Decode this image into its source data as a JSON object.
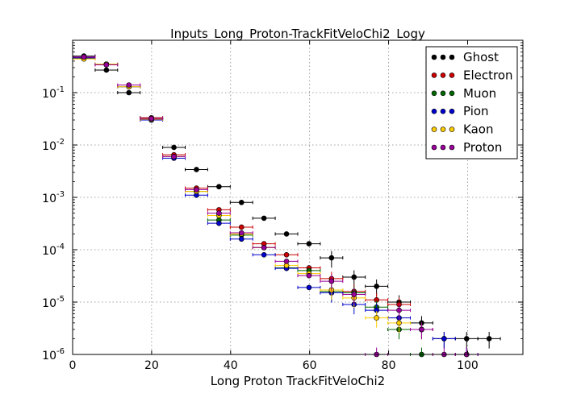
{
  "chart_data": {
    "type": "scatter",
    "title": "Inputs_Long_Proton-TrackFitVeloChi2_Logy",
    "xlabel": "Long Proton TrackFitVeloChi2",
    "ylabel": "",
    "xlim": [
      0,
      114
    ],
    "ylim": [
      1e-06,
      1
    ],
    "yscale": "log",
    "grid": true,
    "legend_position": "top-right",
    "x_ticks": [
      0,
      20,
      40,
      60,
      80,
      100
    ],
    "x_tick_labels": [
      "0",
      "20",
      "40",
      "60",
      "80",
      "100"
    ],
    "y_ticks": [
      1e-06,
      1e-05,
      0.0001,
      0.001,
      0.01,
      0.1
    ],
    "y_tick_labels": [
      {
        "base": "10",
        "exp": "-6"
      },
      {
        "base": "10",
        "exp": "-5"
      },
      {
        "base": "10",
        "exp": "-4"
      },
      {
        "base": "10",
        "exp": "-3"
      },
      {
        "base": "10",
        "exp": "-2"
      },
      {
        "base": "10",
        "exp": "-1"
      }
    ],
    "bin_width": 5.7,
    "series": [
      {
        "name": "Ghost",
        "color": "#000000",
        "points": [
          [
            2.85,
            0.5
          ],
          [
            8.55,
            0.27
          ],
          [
            14.25,
            0.1
          ],
          [
            19.95,
            0.033
          ],
          [
            25.65,
            0.009
          ],
          [
            31.35,
            0.0034
          ],
          [
            37.05,
            0.0016
          ],
          [
            42.75,
            0.0008
          ],
          [
            48.45,
            0.0004
          ],
          [
            54.15,
            0.0002
          ],
          [
            59.85,
            0.00013
          ],
          [
            65.55,
            7e-05
          ],
          [
            71.25,
            3e-05
          ],
          [
            76.95,
            2e-05
          ],
          [
            82.65,
            1e-05
          ],
          [
            88.35,
            4e-06
          ],
          [
            94.05,
            2e-06
          ],
          [
            99.75,
            2e-06
          ],
          [
            105.45,
            2e-06
          ]
        ]
      },
      {
        "name": "Electron",
        "color": "#cc0000",
        "points": [
          [
            2.85,
            0.47
          ],
          [
            8.55,
            0.34
          ],
          [
            14.25,
            0.13
          ],
          [
            19.95,
            0.033
          ],
          [
            25.65,
            0.0065
          ],
          [
            31.35,
            0.0015
          ],
          [
            37.05,
            0.00058
          ],
          [
            42.75,
            0.00027
          ],
          [
            48.45,
            0.00013
          ],
          [
            54.15,
            8e-05
          ],
          [
            59.85,
            4.5e-05
          ],
          [
            65.55,
            2.8e-05
          ],
          [
            71.25,
            1.6e-05
          ],
          [
            76.95,
            1.1e-05
          ],
          [
            82.65,
            9e-06
          ],
          [
            88.35,
            3e-06
          ]
        ]
      },
      {
        "name": "Muon",
        "color": "#006600",
        "points": [
          [
            2.85,
            0.45
          ],
          [
            8.55,
            0.35
          ],
          [
            14.25,
            0.13
          ],
          [
            19.95,
            0.031
          ],
          [
            25.65,
            0.006
          ],
          [
            31.35,
            0.0013
          ],
          [
            37.05,
            0.00037
          ],
          [
            42.75,
            0.00019
          ],
          [
            48.45,
            0.00011
          ],
          [
            54.15,
            4.5e-05
          ],
          [
            59.85,
            4e-05
          ],
          [
            65.55,
            1.6e-05
          ],
          [
            71.25,
            1.5e-05
          ],
          [
            76.95,
            8e-06
          ],
          [
            82.65,
            3e-06
          ],
          [
            88.35,
            1e-06
          ]
        ]
      },
      {
        "name": "Pion",
        "color": "#0000cc",
        "points": [
          [
            2.85,
            0.46
          ],
          [
            8.55,
            0.35
          ],
          [
            14.25,
            0.13
          ],
          [
            19.95,
            0.03
          ],
          [
            25.65,
            0.0056
          ],
          [
            31.35,
            0.0011
          ],
          [
            37.05,
            0.00032
          ],
          [
            42.75,
            0.00016
          ],
          [
            48.45,
            8e-05
          ],
          [
            54.15,
            4.4e-05
          ],
          [
            59.85,
            1.9e-05
          ],
          [
            65.55,
            1.5e-05
          ],
          [
            71.25,
            9e-06
          ],
          [
            76.95,
            7e-06
          ],
          [
            82.65,
            5e-06
          ],
          [
            88.35,
            3e-06
          ],
          [
            94.05,
            2e-06
          ],
          [
            99.75,
            1e-06
          ]
        ]
      },
      {
        "name": "Kaon",
        "color": "#ffcc00",
        "points": [
          [
            2.85,
            0.44
          ],
          [
            8.55,
            0.35
          ],
          [
            14.25,
            0.13
          ],
          [
            19.95,
            0.031
          ],
          [
            25.65,
            0.006
          ],
          [
            31.35,
            0.0013
          ],
          [
            37.05,
            0.00045
          ],
          [
            42.75,
            0.0002
          ],
          [
            48.45,
            0.00011
          ],
          [
            54.15,
            5e-05
          ],
          [
            59.85,
            3.5e-05
          ],
          [
            65.55,
            1.7e-05
          ],
          [
            71.25,
            1.2e-05
          ],
          [
            76.95,
            5e-06
          ],
          [
            82.65,
            4e-06
          ],
          [
            88.35,
            3e-06
          ]
        ]
      },
      {
        "name": "Proton",
        "color": "#990099",
        "points": [
          [
            2.85,
            0.48
          ],
          [
            8.55,
            0.34
          ],
          [
            14.25,
            0.14
          ],
          [
            19.95,
            0.032
          ],
          [
            25.65,
            0.006
          ],
          [
            31.35,
            0.0014
          ],
          [
            37.05,
            0.0005
          ],
          [
            42.75,
            0.00021
          ],
          [
            48.45,
            0.00011
          ],
          [
            54.15,
            6e-05
          ],
          [
            59.85,
            3.2e-05
          ],
          [
            65.55,
            2.5e-05
          ],
          [
            71.25,
            1.4e-05
          ],
          [
            76.95,
            1e-06
          ],
          [
            82.65,
            7e-06
          ],
          [
            88.35,
            3e-06
          ],
          [
            94.05,
            1e-06
          ],
          [
            99.75,
            1e-06
          ]
        ]
      }
    ]
  }
}
